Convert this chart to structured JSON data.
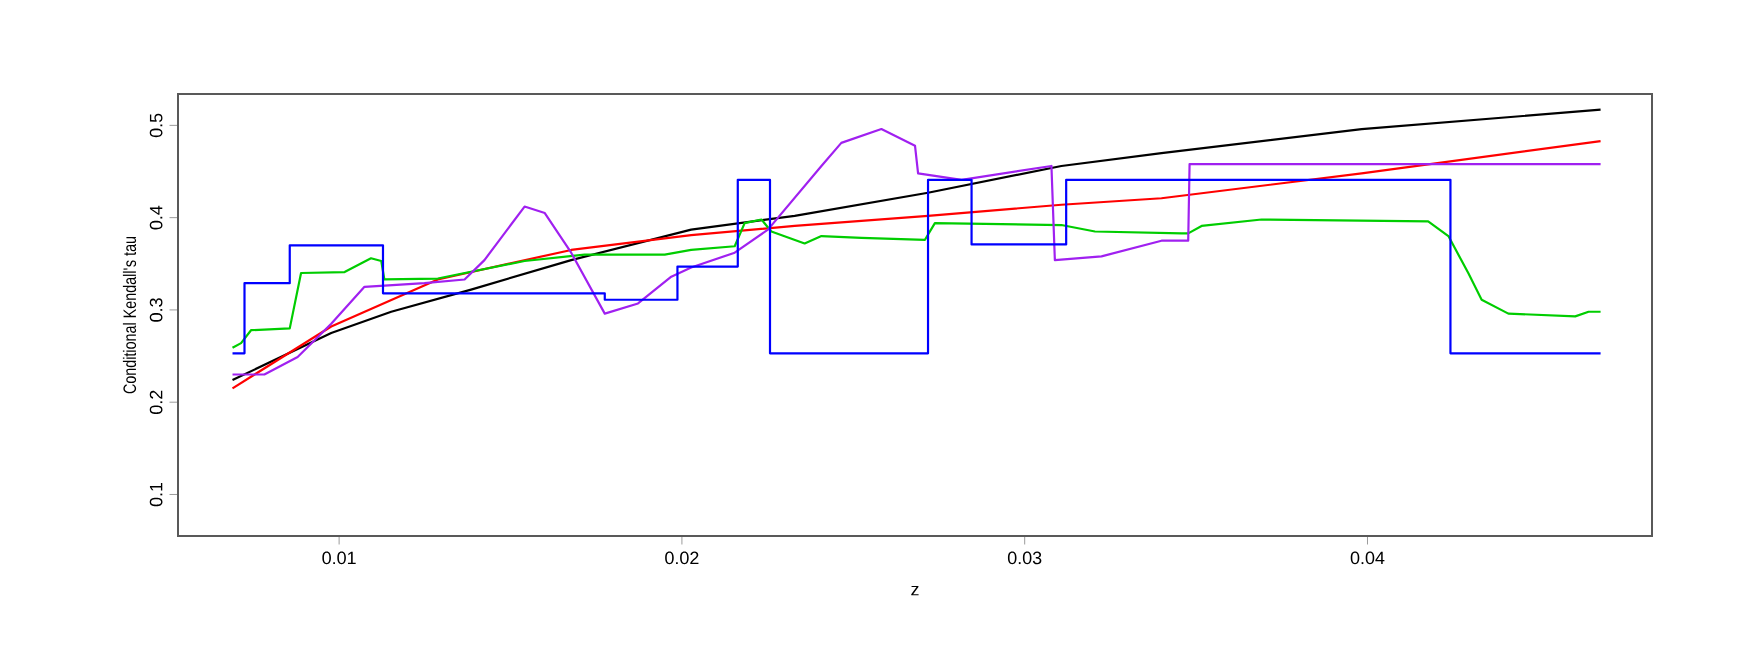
{
  "chart_data": {
    "type": "line",
    "xlabel": "z",
    "ylabel": "Conditional Kendall's tau",
    "xlim": [
      0.0053,
      0.0483
    ],
    "ylim": [
      0.055,
      0.534
    ],
    "xticks": [
      0.01,
      0.02,
      0.03,
      0.04
    ],
    "yticks": [
      0.1,
      0.2,
      0.3,
      0.4,
      0.5
    ],
    "grid": false,
    "line_style": "solid",
    "marker": "none",
    "series": [
      {
        "color": "#000000",
        "x": [
          0.00689,
          0.00977,
          0.01152,
          0.01385,
          0.01677,
          0.02027,
          0.02329,
          0.02718,
          0.03107,
          0.03399,
          0.03983,
          0.0468
        ],
        "values": [
          0.224,
          0.275,
          0.298,
          0.322,
          0.354,
          0.387,
          0.402,
          0.427,
          0.456,
          0.47,
          0.496,
          0.517
        ]
      },
      {
        "color": "#ff0000",
        "x": [
          0.00689,
          0.00977,
          0.01288,
          0.01677,
          0.02027,
          0.02329,
          0.02718,
          0.03107,
          0.03399,
          0.03983,
          0.0468
        ],
        "values": [
          0.215,
          0.282,
          0.333,
          0.365,
          0.381,
          0.391,
          0.402,
          0.414,
          0.421,
          0.448,
          0.483
        ]
      },
      {
        "color": "#00cd00",
        "x": [
          0.00689,
          0.00714,
          0.00743,
          0.00856,
          0.00889,
          0.01016,
          0.01093,
          0.01123,
          0.01132,
          0.01288,
          0.01541,
          0.01716,
          0.0195,
          0.02027,
          0.02154,
          0.02183,
          0.02232,
          0.02261,
          0.02358,
          0.02407,
          0.02524,
          0.02709,
          0.02738,
          0.03107,
          0.03205,
          0.03458,
          0.03477,
          0.03516,
          0.03691,
          0.04177,
          0.04236,
          0.04294,
          0.04333,
          0.04411,
          0.04606,
          0.04645,
          0.0468
        ],
        "values": [
          0.259,
          0.264,
          0.278,
          0.28,
          0.34,
          0.341,
          0.356,
          0.353,
          0.333,
          0.334,
          0.353,
          0.36,
          0.36,
          0.365,
          0.369,
          0.394,
          0.398,
          0.385,
          0.372,
          0.38,
          0.378,
          0.376,
          0.394,
          0.392,
          0.385,
          0.383,
          0.383,
          0.391,
          0.398,
          0.396,
          0.38,
          0.34,
          0.311,
          0.296,
          0.293,
          0.298,
          0.298
        ]
      },
      {
        "color": "#a020f0",
        "x": [
          0.00689,
          0.00782,
          0.00879,
          0.00977,
          0.01074,
          0.01249,
          0.01366,
          0.01424,
          0.01541,
          0.016,
          0.01677,
          0.01775,
          0.01872,
          0.01969,
          0.02027,
          0.02154,
          0.02251,
          0.02407,
          0.02465,
          0.02582,
          0.0268,
          0.02689,
          0.02816,
          0.03078,
          0.03088,
          0.03224,
          0.03399,
          0.03477,
          0.03481,
          0.0468
        ],
        "values": [
          0.23,
          0.23,
          0.249,
          0.285,
          0.325,
          0.329,
          0.333,
          0.354,
          0.412,
          0.405,
          0.362,
          0.296,
          0.307,
          0.336,
          0.346,
          0.362,
          0.387,
          0.456,
          0.481,
          0.496,
          0.478,
          0.448,
          0.441,
          0.456,
          0.354,
          0.358,
          0.375,
          0.375,
          0.458,
          0.458
        ]
      },
      {
        "type": "step",
        "color": "#0000ff",
        "x": [
          0.00689,
          0.00724,
          0.00856,
          0.01128,
          0.01775,
          0.01987,
          0.02163,
          0.02257,
          0.02718,
          0.02845,
          0.03121,
          0.04242,
          0.0468
        ],
        "values": [
          0.253,
          0.329,
          0.37,
          0.318,
          0.311,
          0.347,
          0.441,
          0.253,
          0.441,
          0.371,
          0.441,
          0.253,
          0.253
        ]
      }
    ]
  }
}
